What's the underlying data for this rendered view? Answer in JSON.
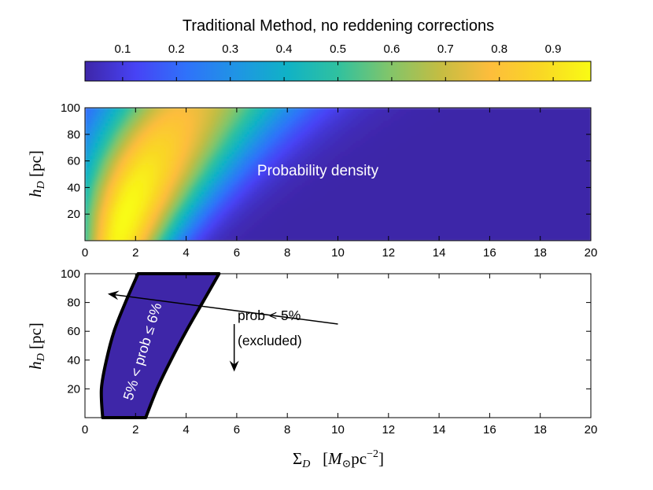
{
  "figure": {
    "title": "Traditional Method, no reddening corrections",
    "colorbar": {
      "colormap": "parula",
      "range": [
        0.03,
        0.97
      ],
      "ticks": [
        0.1,
        0.2,
        0.3,
        0.4,
        0.5,
        0.6,
        0.7,
        0.8,
        0.9
      ],
      "tick_labels": [
        "0.1",
        "0.2",
        "0.3",
        "0.4",
        "0.5",
        "0.6",
        "0.7",
        "0.8",
        "0.9"
      ],
      "stops": [
        "#3e26a8",
        "#4743f5",
        "#2f72fa",
        "#1f95e4",
        "#10b2c6",
        "#30c19f",
        "#80c56b",
        "#c3bd43",
        "#fdbd3c",
        "#f9d725",
        "#f9fb14"
      ]
    }
  },
  "chart_data": [
    {
      "type": "heatmap",
      "name": "probability-density",
      "annotation": "Probability density",
      "xlabel": "",
      "ylabel": "h_D [pc]",
      "xlim": [
        0,
        20
      ],
      "ylim": [
        0,
        100
      ],
      "x_ticks": [
        0,
        2,
        4,
        6,
        8,
        10,
        12,
        14,
        16,
        18,
        20
      ],
      "x_tick_labels": [
        "0",
        "2",
        "4",
        "6",
        "8",
        "10",
        "12",
        "14",
        "16",
        "18",
        "20"
      ],
      "y_ticks": [
        20,
        40,
        60,
        80,
        100
      ],
      "y_tick_labels": [
        "20",
        "40",
        "60",
        "80",
        "100"
      ],
      "ridge": [
        {
          "y": 0,
          "x": 1.3
        },
        {
          "y": 20,
          "x": 1.6
        },
        {
          "y": 40,
          "x": 2.0
        },
        {
          "y": 60,
          "x": 2.5
        },
        {
          "y": 80,
          "x": 3.1
        },
        {
          "y": 100,
          "x": 3.8
        }
      ],
      "peak": {
        "x": 1.6,
        "y": 18,
        "value": 0.97
      },
      "background_value": 0.03
    },
    {
      "type": "area",
      "name": "allowed-region",
      "xlabel": "Σ_D [M_⊙ pc^-2]",
      "ylabel": "h_D [pc]",
      "xlim": [
        0,
        20
      ],
      "ylim": [
        0,
        100
      ],
      "x_ticks": [
        0,
        2,
        4,
        6,
        8,
        10,
        12,
        14,
        16,
        18,
        20
      ],
      "x_tick_labels": [
        "0",
        "2",
        "4",
        "6",
        "8",
        "10",
        "12",
        "14",
        "16",
        "18",
        "20"
      ],
      "y_ticks": [
        20,
        40,
        60,
        80,
        100
      ],
      "y_tick_labels": [
        "20",
        "40",
        "60",
        "80",
        "100"
      ],
      "left_boundary": [
        {
          "x": 0.7,
          "y": 0
        },
        {
          "x": 0.65,
          "y": 20
        },
        {
          "x": 0.85,
          "y": 40
        },
        {
          "x": 1.15,
          "y": 60
        },
        {
          "x": 1.6,
          "y": 80
        },
        {
          "x": 2.1,
          "y": 100
        }
      ],
      "right_boundary": [
        {
          "x": 2.4,
          "y": 0
        },
        {
          "x": 2.85,
          "y": 20
        },
        {
          "x": 3.4,
          "y": 40
        },
        {
          "x": 4.0,
          "y": 60
        },
        {
          "x": 4.65,
          "y": 80
        },
        {
          "x": 5.3,
          "y": 100
        }
      ],
      "fill_color": "#3e26a8",
      "band_label": "5% < prob ≤ 6%",
      "excluded_label_line1": "prob < 5%",
      "excluded_label_line2": "(excluded)",
      "arrows": [
        {
          "from": [
            10.0,
            65
          ],
          "to": [
            0.9,
            86
          ]
        },
        {
          "from": [
            5.9,
            65
          ],
          "to": [
            5.9,
            32
          ]
        }
      ]
    }
  ]
}
